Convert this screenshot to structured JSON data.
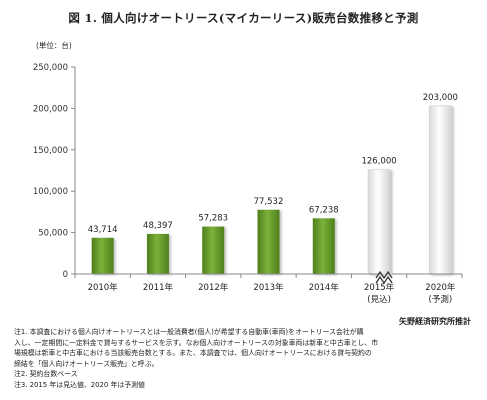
{
  "figure_title": "図 1. 個人向けオートリース(マイカーリース)販売台数推移と予測",
  "unit_label": "(単位：台)",
  "source": "矢野経済研究所推計",
  "notes": [
    "注1. 本調査における個人向けオートリースとは一般消費者(個人)が希望する自動車(車両)をオートリース会社が購",
    "入し、一定期間に一定料金で貸与するサービスを示す。なお個人向けオートリースの対象車両は新車と中古車とし、市",
    "場規模は新車と中古車における当該販売台数とする。また、本調査では、個人向けオートリースにおける貸与契約の",
    "締結を「個人向けオートリース販売」と呼ぶ。",
    "注2. 契約台数ベース",
    "注3. 2015 年は見込値、2020 年は予測値"
  ],
  "colors": {
    "actual_bar": "#6b9e2e",
    "forecast_bar": "#f2f2f2",
    "axis": "#888888",
    "grid": "#d8d8d8"
  },
  "chart_data": {
    "type": "bar",
    "categories": [
      "2010年",
      "2011年",
      "2012年",
      "2013年",
      "2014年",
      "2015年",
      "2020年"
    ],
    "category_sublabels": [
      "",
      "",
      "",
      "",
      "",
      "(見込)",
      "(予測)"
    ],
    "values": [
      43714,
      48397,
      57283,
      77532,
      67238,
      126000,
      203000
    ],
    "value_labels": [
      "43,714",
      "48,397",
      "57,283",
      "77,532",
      "67,238",
      "126,000",
      "203,000"
    ],
    "bar_styles": [
      "actual",
      "actual",
      "actual",
      "actual",
      "actual",
      "forecast",
      "forecast"
    ],
    "axis_break_between": [
      "2015年",
      "2020年"
    ],
    "ylim": [
      0,
      250000
    ],
    "yticks": [
      0,
      50000,
      100000,
      150000,
      200000,
      250000
    ],
    "ytick_labels": [
      "0",
      "50,000",
      "100,000",
      "150,000",
      "200,000",
      "250,000"
    ],
    "grid": false,
    "legend": "none"
  }
}
